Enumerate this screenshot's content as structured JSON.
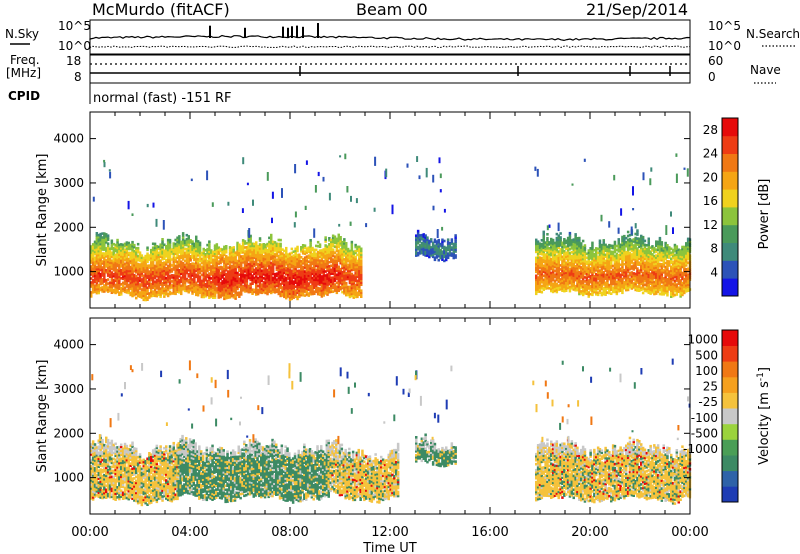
{
  "header": {
    "station": "McMurdo (fitACF)",
    "beam": "Beam 00",
    "date": "21/Sep/2014",
    "mode": "normal (fast) -151 RF"
  },
  "param_panel": {
    "left_labels": {
      "nsky": "N.Sky",
      "freq1": "Freq.",
      "freq2": "[MHz]",
      "cpid": "CPID"
    },
    "right_labels": {
      "nsearch": "N.Search",
      "nave": "Nave"
    },
    "left_ticks": {
      "noise_top": "10^5",
      "noise_bottom": "10^0",
      "freq_top": "18",
      "freq_bottom": "8"
    },
    "right_ticks": {
      "noise_top": "10^5",
      "noise_bottom": "10^0",
      "nave_top": "60",
      "nave_bottom": "0"
    }
  },
  "colors": {
    "power_scale": [
      "#1414e6",
      "#2c52b8",
      "#3f8a7a",
      "#4a9a5a",
      "#8cc43c",
      "#f0d21e",
      "#f5a514",
      "#f07814",
      "#ee3c14",
      "#e60a0a"
    ],
    "velocity_scale": [
      "#1e3cb4",
      "#2e62a8",
      "#3c8a64",
      "#4a9e56",
      "#9bd33c",
      "#c8c8c8",
      "#f5c23c",
      "#f5a01e",
      "#f07814",
      "#ee3c14",
      "#e60a0a"
    ]
  },
  "chart_data": [
    {
      "type": "heatmap",
      "title": "Power",
      "xlabel": "Time UT",
      "ylabel": "Slant Range [km]",
      "xlim": [
        "00:00",
        "24:00"
      ],
      "ylim": [
        180,
        4600
      ],
      "x_ticks": [
        "00:00",
        "04:00",
        "08:00",
        "12:00",
        "16:00",
        "20:00",
        "00:00"
      ],
      "y_ticks": [
        "1000",
        "2000",
        "3000",
        "4000"
      ],
      "colorbar": {
        "label": "Power [dB]",
        "ticks": [
          "4",
          "8",
          "12",
          "16",
          "20",
          "24",
          "28"
        ],
        "range": [
          0,
          30
        ]
      },
      "echo_segments": [
        {
          "start_ut": 0.0,
          "end_ut": 10.8,
          "range_low_km": 420,
          "range_high_km": 1750,
          "peak_km": 850,
          "peak_power_db": 28
        },
        {
          "start_ut": 13.0,
          "end_ut": 14.6,
          "range_low_km": 1300,
          "range_high_km": 1900,
          "peak_km": 1550,
          "peak_power_db": 10
        },
        {
          "start_ut": 17.8,
          "end_ut": 24.0,
          "range_low_km": 480,
          "range_high_km": 1800,
          "peak_km": 900,
          "peak_power_db": 26
        }
      ]
    },
    {
      "type": "heatmap",
      "title": "Velocity",
      "xlabel": "Time UT",
      "ylabel": "Slant Range [km]",
      "xlim": [
        "00:00",
        "24:00"
      ],
      "ylim": [
        180,
        4600
      ],
      "x_ticks": [
        "00:00",
        "04:00",
        "08:00",
        "12:00",
        "16:00",
        "20:00",
        "00:00"
      ],
      "y_ticks": [
        "1000",
        "2000",
        "3000",
        "4000"
      ],
      "colorbar": {
        "label": "Velocity [m s^-1]",
        "ticks": [
          "1000",
          "500",
          "100",
          "25",
          "-25",
          "-100",
          "-500",
          "-1000"
        ]
      },
      "echo_segments": [
        {
          "start_ut": 0.0,
          "end_ut": 3.5,
          "range_low_km": 450,
          "range_high_km": 1800,
          "dominant_velocity": -100
        },
        {
          "start_ut": 3.5,
          "end_ut": 9.5,
          "range_low_km": 500,
          "range_high_km": 1800,
          "dominant_velocity": 100
        },
        {
          "start_ut": 9.5,
          "end_ut": 12.3,
          "range_low_km": 500,
          "range_high_km": 1700,
          "dominant_velocity": -100
        },
        {
          "start_ut": 13.0,
          "end_ut": 14.6,
          "range_low_km": 1300,
          "range_high_km": 1900,
          "dominant_velocity": 100
        },
        {
          "start_ut": 17.8,
          "end_ut": 24.0,
          "range_low_km": 480,
          "range_high_km": 1800,
          "dominant_velocity": -100
        }
      ]
    }
  ]
}
